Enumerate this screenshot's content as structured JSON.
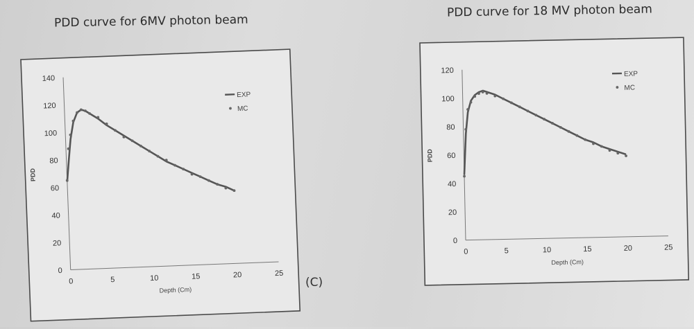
{
  "panels": {
    "left_title": "PDD curve for 6MV photon beam",
    "right_title": "PDD curve for 18 MV photon beam",
    "panel_label": "(C)"
  },
  "chart_data": [
    {
      "type": "line",
      "title": "PDD curve for 6MV photon beam",
      "xlabel": "Depth (Cm)",
      "ylabel": "PDD",
      "xlim": [
        0,
        25
      ],
      "ylim": [
        0,
        140
      ],
      "xticks": [
        "0",
        "5",
        "10",
        "15",
        "20",
        "25"
      ],
      "yticks": [
        "0",
        "20",
        "40",
        "60",
        "80",
        "100",
        "120",
        "140"
      ],
      "legend_position": "top-right",
      "grid": false,
      "series": [
        {
          "name": "EXP",
          "style": "line",
          "color": "#555555",
          "x": [
            0,
            0.3,
            0.6,
            1.0,
            1.5,
            2.0,
            2.5,
            3,
            4,
            5,
            6,
            7,
            8,
            9,
            10,
            11,
            12,
            13,
            14,
            15,
            16,
            17,
            18,
            19,
            20
          ],
          "y": [
            64,
            80,
            95,
            107,
            114,
            116,
            115,
            113,
            109,
            104,
            100,
            96,
            92,
            88,
            84,
            80,
            76,
            73,
            70,
            67,
            64,
            61,
            58,
            56,
            53
          ]
        },
        {
          "name": "MC",
          "style": "points",
          "color": "#666666",
          "x": [
            0,
            0.3,
            0.6,
            1.0,
            1.5,
            2.0,
            2.5,
            3,
            4,
            5,
            6,
            7,
            8,
            9,
            10,
            11,
            12,
            13,
            14,
            15,
            16,
            17,
            18,
            19,
            20
          ],
          "y": [
            65,
            88,
            98,
            108,
            114,
            116,
            115,
            113,
            110,
            105,
            100,
            95,
            92,
            88,
            84,
            80,
            77,
            73,
            70,
            66,
            64,
            61,
            58,
            55,
            53
          ]
        }
      ]
    },
    {
      "type": "line",
      "title": "PDD curve for 18 MV photon beam",
      "xlabel": "Depth (Cm)",
      "ylabel": "PDD",
      "xlim": [
        0,
        25
      ],
      "ylim": [
        0,
        120
      ],
      "xticks": [
        "0",
        "5",
        "10",
        "15",
        "20",
        "25"
      ],
      "yticks": [
        "0",
        "20",
        "40",
        "60",
        "80",
        "100",
        "120"
      ],
      "legend_position": "top-right",
      "grid": false,
      "series": [
        {
          "name": "EXP",
          "style": "line",
          "color": "#555555",
          "x": [
            0,
            0.3,
            0.6,
            1.0,
            1.5,
            2.0,
            2.5,
            3,
            4,
            5,
            6,
            7,
            8,
            9,
            10,
            11,
            12,
            13,
            14,
            15,
            16,
            17,
            18,
            19,
            20
          ],
          "y": [
            46,
            75,
            90,
            98,
            102,
            104,
            105,
            104,
            102,
            99,
            96,
            93,
            90,
            87,
            84,
            81,
            78,
            75,
            72,
            69,
            67,
            64,
            62,
            60,
            58
          ]
        },
        {
          "name": "MC",
          "style": "points",
          "color": "#666666",
          "x": [
            0,
            0.3,
            0.6,
            1.0,
            1.5,
            2.0,
            2.5,
            3,
            4,
            5,
            6,
            7,
            8,
            9,
            10,
            11,
            12,
            13,
            14,
            15,
            16,
            17,
            18,
            19,
            20
          ],
          "y": [
            45,
            78,
            92,
            97,
            101,
            103,
            104,
            103,
            101,
            99,
            96,
            93,
            90,
            87,
            84,
            81,
            78,
            75,
            72,
            69,
            66,
            64,
            61,
            59,
            57
          ]
        }
      ]
    }
  ]
}
